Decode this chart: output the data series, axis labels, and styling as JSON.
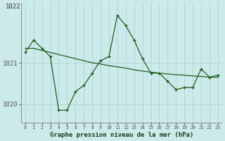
{
  "x": [
    0,
    1,
    2,
    3,
    4,
    5,
    6,
    7,
    8,
    9,
    10,
    11,
    12,
    13,
    14,
    15,
    16,
    17,
    18,
    19,
    20,
    21,
    22,
    23
  ],
  "y_main": [
    1021.25,
    1021.55,
    1021.35,
    1021.15,
    1019.85,
    1019.85,
    1020.3,
    1020.45,
    1020.75,
    1021.05,
    1021.15,
    1022.15,
    1021.9,
    1021.55,
    1021.1,
    1020.75,
    1020.75,
    1020.55,
    1020.35,
    1020.4,
    1020.4,
    1020.85,
    1020.65,
    1020.7
  ],
  "y_smooth": [
    1021.35,
    1021.35,
    1021.3,
    1021.25,
    1021.2,
    1021.15,
    1021.1,
    1021.05,
    1021.0,
    1020.97,
    1020.93,
    1020.9,
    1020.87,
    1020.83,
    1020.8,
    1020.77,
    1020.75,
    1020.73,
    1020.71,
    1020.7,
    1020.68,
    1020.67,
    1020.65,
    1020.65
  ],
  "line_color": "#1f5c1f",
  "bg_color": "#cceaea",
  "grid_color": "#aad4d4",
  "axis_color": "#888888",
  "title": "Graphe pression niveau de la mer (hPa)",
  "ylim_bottom": 1019.55,
  "ylim_top": 1022.45,
  "yticks": [
    1020,
    1021
  ],
  "ytick_labels": [
    "1020",
    "1021"
  ],
  "top_partial_label": "1022",
  "xlim": [
    -0.5,
    23.5
  ]
}
